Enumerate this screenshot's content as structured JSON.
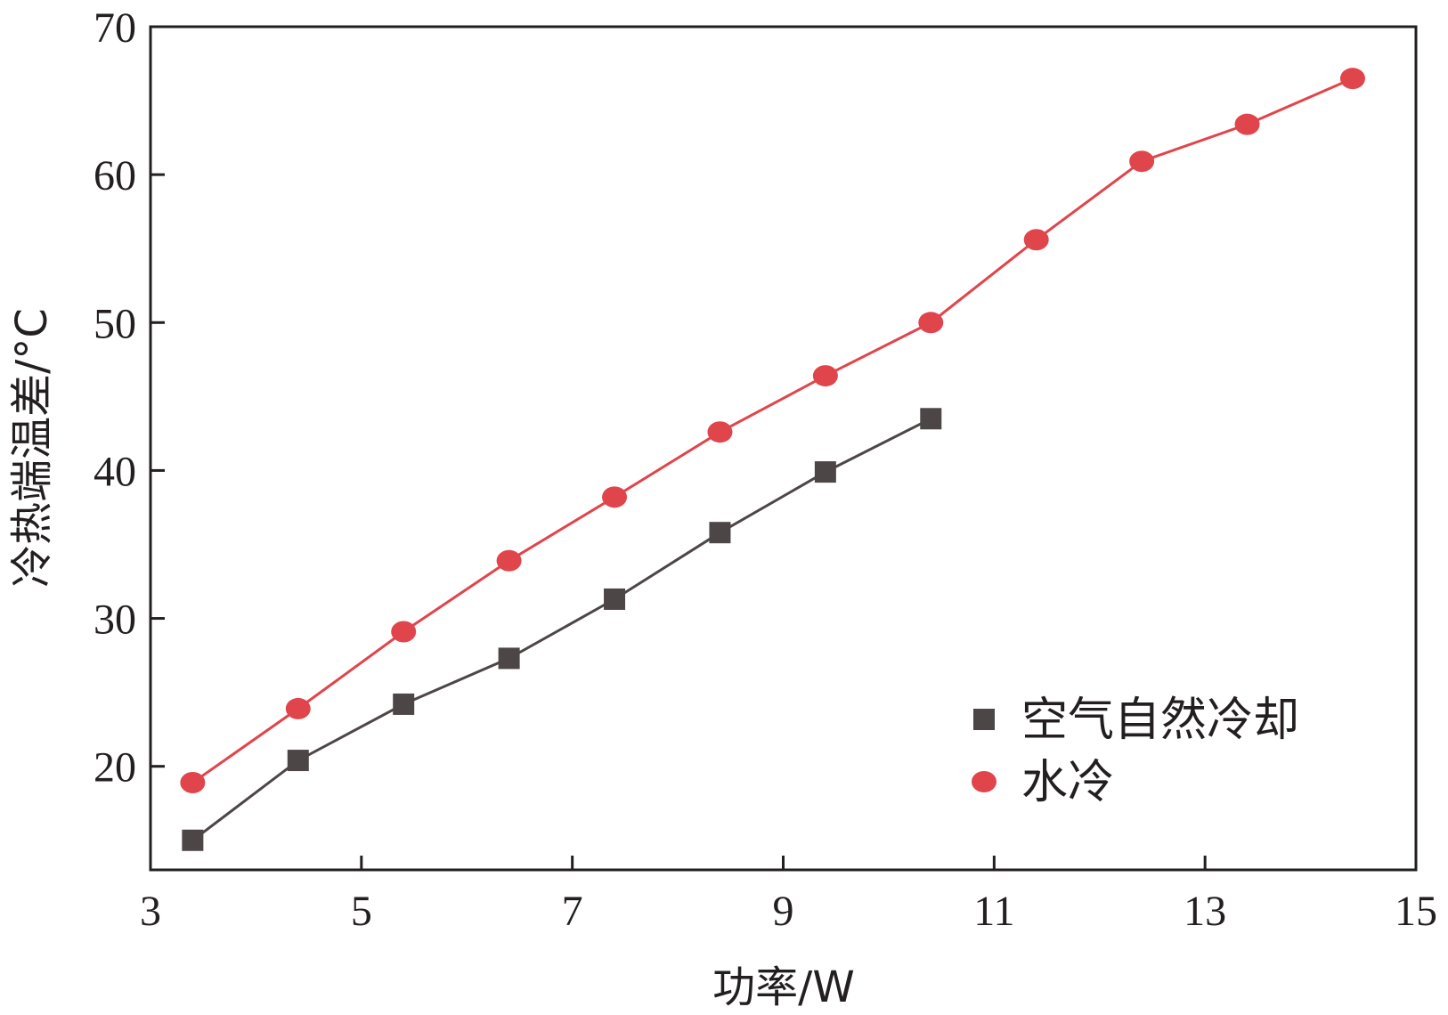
{
  "chart_data": {
    "type": "line",
    "title": "",
    "xlabel": "功率/W",
    "ylabel": "冷热端温差/°C",
    "xlim": [
      3,
      15
    ],
    "ylim": [
      13,
      70
    ],
    "xticks": [
      3,
      5,
      7,
      9,
      11,
      13,
      15
    ],
    "yticks": [
      20,
      30,
      40,
      50,
      60,
      70
    ],
    "xtick_labels": [
      "3",
      "5",
      "7",
      "9",
      "11",
      "13",
      "15"
    ],
    "ytick_labels": [
      "20",
      "30",
      "40",
      "50",
      "60",
      "70"
    ],
    "grid": false,
    "legend_position": "bottom-right",
    "series": [
      {
        "name": "空气自然冷却",
        "marker": "square",
        "color": "#4d4646",
        "x": [
          3.4,
          4.4,
          5.4,
          6.4,
          7.4,
          8.4,
          9.4,
          10.4
        ],
        "y": [
          15.0,
          20.4,
          24.2,
          27.3,
          31.3,
          35.8,
          39.9,
          43.5
        ]
      },
      {
        "name": "水冷",
        "marker": "circle",
        "color": "#e0454c",
        "x": [
          3.4,
          4.4,
          5.4,
          6.4,
          7.4,
          8.4,
          9.4,
          10.4,
          11.4,
          12.4,
          13.4,
          14.4
        ],
        "y": [
          18.9,
          23.9,
          29.1,
          33.9,
          38.2,
          42.6,
          46.4,
          50.0,
          55.6,
          60.9,
          63.4,
          66.5
        ]
      }
    ]
  }
}
